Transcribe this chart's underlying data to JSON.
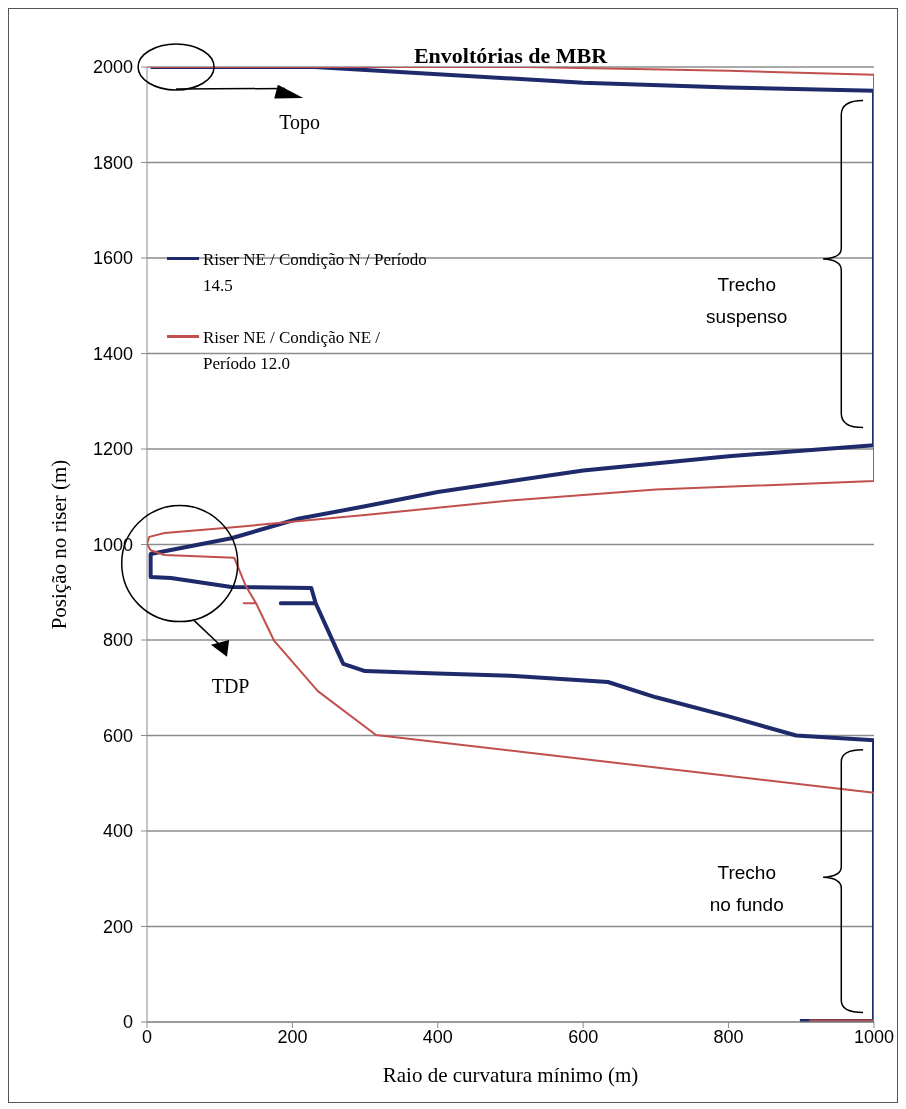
{
  "chart_data": {
    "type": "line",
    "title": "Envoltórias de MBR",
    "xlabel": "Raio de curvatura mínimo (m)",
    "ylabel": "Posição no riser  (m)",
    "xlim": [
      0,
      1000
    ],
    "xticks": [
      0,
      200,
      400,
      600,
      800,
      1000
    ],
    "ylim": [
      0,
      2000
    ],
    "yticks": [
      0,
      200,
      400,
      600,
      800,
      1000,
      1200,
      1400,
      1600,
      1800,
      2000
    ],
    "grid": "y",
    "legend": "top left",
    "line_style": "solid",
    "marker": "none",
    "annotations": [
      "Topo",
      "TDP",
      "Trecho suspenso",
      "Trecho no fundo"
    ],
    "series": [
      {
        "name": "Riser NE / Condição N / Período 14.5",
        "color": "#1f2a6b",
        "x": [
          898,
          1000,
          1000,
          893,
          800,
          700,
          634,
          500,
          400,
          300,
          270,
          260,
          232,
          184,
          232,
          226,
          116,
          33,
          5,
          5,
          24,
          116,
          208,
          300,
          400,
          600,
          800,
          1000,
          1000,
          800,
          600,
          400,
          231,
          5
        ],
        "values": [
          2,
          2,
          590,
          600,
          640,
          680,
          712,
          725,
          730,
          735,
          750,
          783,
          877,
          877,
          877,
          909,
          911,
          930,
          932,
          980,
          986,
          1013,
          1054,
          1080,
          1110,
          1155,
          1185,
          1208,
          1950,
          1957,
          1967,
          1985,
          2000,
          2000
        ]
      },
      {
        "name": "Riser NE / Condição NE / Período 12.0",
        "color": "#c0504d",
        "x": [
          911,
          1000,
          1000,
          315,
          235,
          175,
          150,
          133,
          150,
          136,
          120,
          24,
          5,
          0,
          3,
          24,
          111,
          300,
          500,
          700,
          1000,
          1000,
          800,
          523,
          5
        ],
        "values": [
          3,
          3,
          480,
          601,
          693,
          798,
          877,
          877,
          877,
          913,
          972,
          978,
          988,
          1001,
          1016,
          1024,
          1035,
          1062,
          1092,
          1115,
          1133,
          1984,
          1992,
          2000,
          2000
        ]
      }
    ]
  }
}
